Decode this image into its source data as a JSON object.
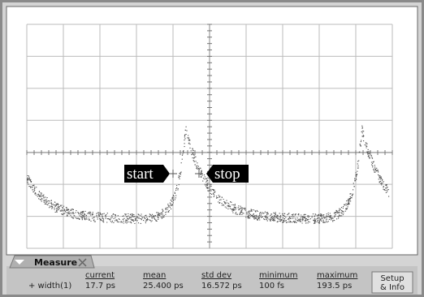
{
  "markers": {
    "start": "start",
    "stop": "stop"
  },
  "panel": {
    "tab": "Measure",
    "headers": [
      "current",
      "mean",
      "std dev",
      "minimum",
      "maximum"
    ],
    "row": {
      "label": "+ width(1)",
      "values": [
        "17.7 ps",
        "25.400 ps",
        "16.572 ps",
        "100 fs",
        "193.5 ps"
      ]
    },
    "button": [
      "Setup",
      "& Info"
    ]
  }
}
